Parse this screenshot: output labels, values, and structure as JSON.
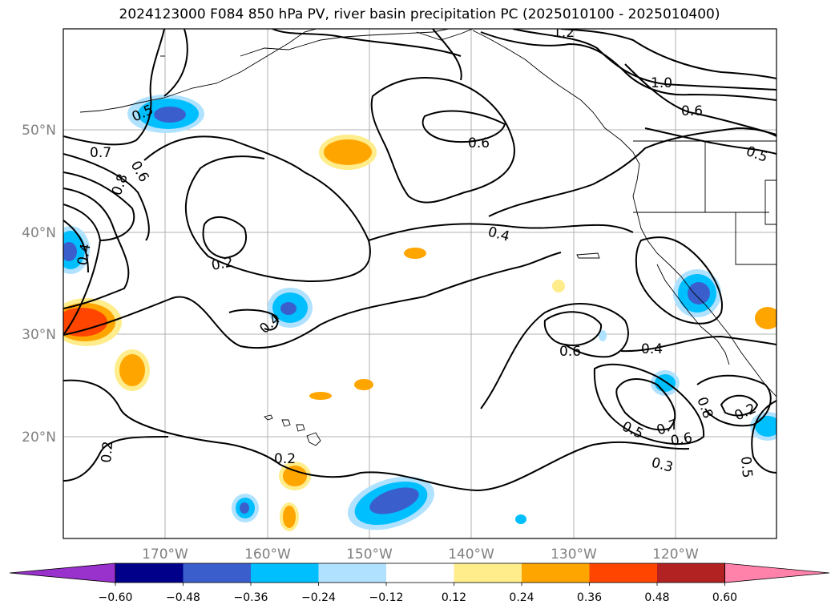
{
  "title": "2024123000 F084 850 hPa PV, river basin precipitation PC (2025010100 - 2025010400)",
  "map": {
    "lat_labels": [
      "50°N",
      "40°N",
      "30°N",
      "20°N"
    ],
    "lon_labels": [
      "170°W",
      "160°W",
      "150°W",
      "140°W",
      "130°W",
      "120°W"
    ],
    "grid": true
  },
  "contour_labels": [
    "1.2",
    "1.0",
    "0.6",
    "0.5",
    "0.6",
    "0.7",
    "0.8",
    "0.6",
    "0.5",
    "0.4",
    "0.4",
    "0.2",
    "0.4",
    "0.6",
    "0.4",
    "0.5",
    "0.7",
    "0.6",
    "0.8",
    "0.2",
    "0.3",
    "0.5",
    "0.2",
    "0.2"
  ],
  "colorbar": {
    "ticks": [
      "−0.60",
      "−0.48",
      "−0.36",
      "−0.24",
      "−0.12",
      "0.12",
      "0.24",
      "0.36",
      "0.48",
      "0.60"
    ],
    "colors": [
      "#9932cc",
      "#00008b",
      "#3a5fcd",
      "#00bfff",
      "#b0e2ff",
      "#ffffff",
      "#ffec8b",
      "#ffa500",
      "#ff4500",
      "#b22222",
      "#ff82ab"
    ]
  },
  "colors": {
    "land_outline": "#000000",
    "contour": "#000000",
    "axis_text": "#808080",
    "grid": "#b0b0b0"
  }
}
